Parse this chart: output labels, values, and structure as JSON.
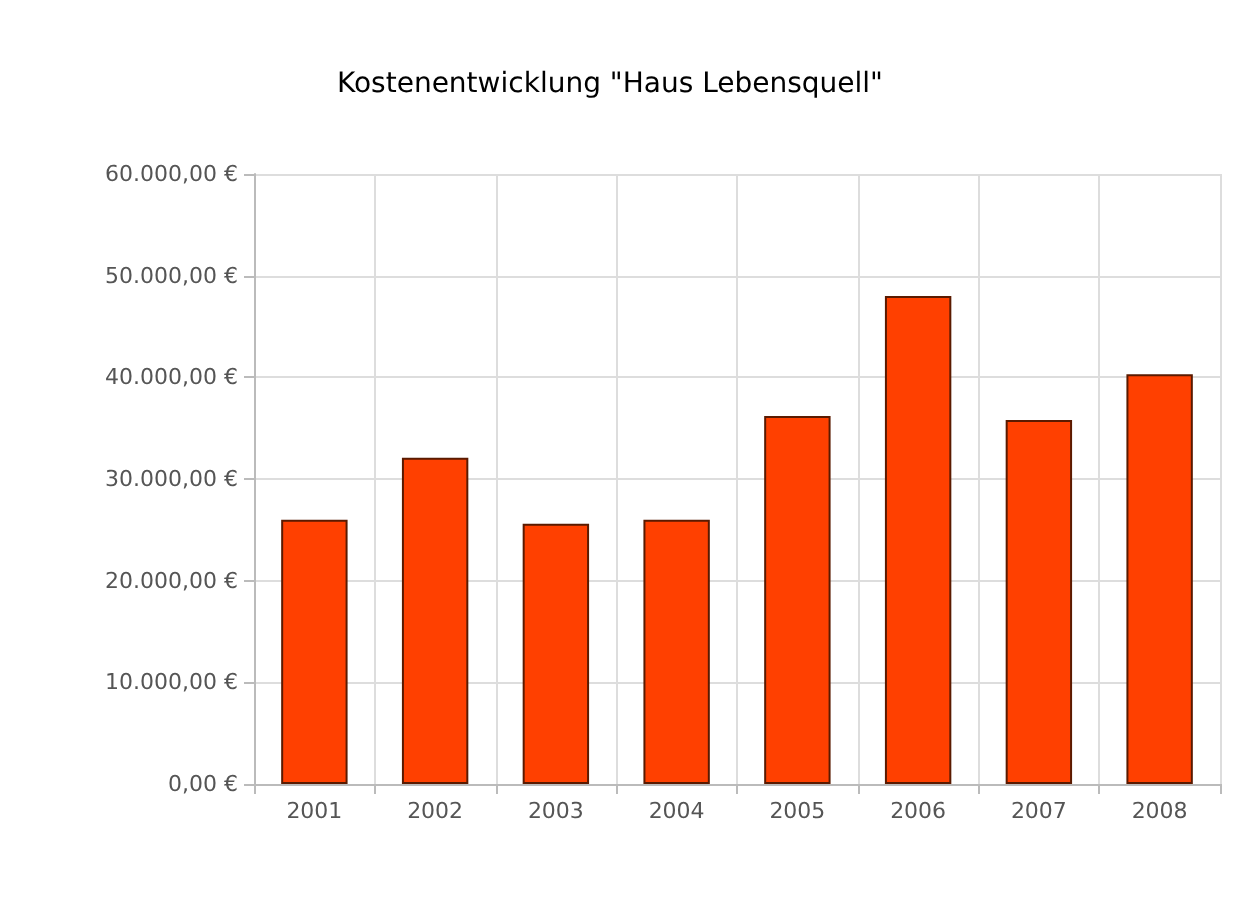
{
  "chart_data": {
    "type": "bar",
    "title": "Kostenentwicklung \"Haus Lebensquell\"",
    "categories": [
      "2001",
      "2002",
      "2003",
      "2004",
      "2005",
      "2006",
      "2007",
      "2008"
    ],
    "values": [
      26000,
      32100,
      25600,
      26000,
      36200,
      48000,
      35800,
      40300
    ],
    "color": "#ff4000",
    "ylim": [
      0,
      60000
    ],
    "yticks": [
      {
        "value": 0,
        "label": "0,00 €"
      },
      {
        "value": 10000,
        "label": "10.000,00 €"
      },
      {
        "value": 20000,
        "label": "20.000,00 €"
      },
      {
        "value": 30000,
        "label": "30.000,00 €"
      },
      {
        "value": 40000,
        "label": "40.000,00 €"
      },
      {
        "value": 50000,
        "label": "50.000,00 €"
      },
      {
        "value": 60000,
        "label": "60.000,00 €"
      }
    ],
    "grid": true
  }
}
